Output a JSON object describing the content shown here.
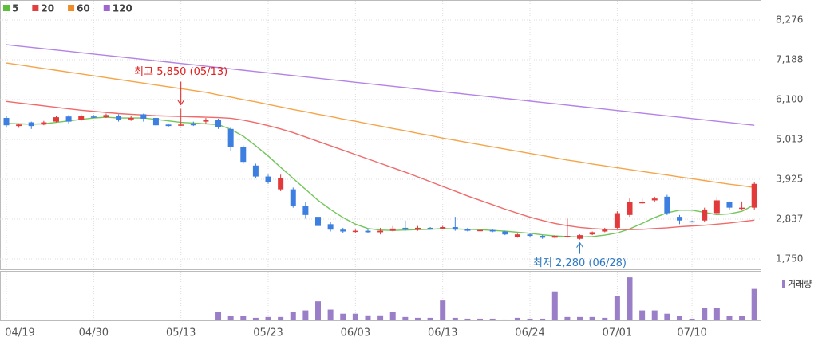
{
  "chart_data": [
    {
      "type": "candlestick",
      "up_color": "#e23a3a",
      "down_color": "#3d7fe0",
      "open": [
        5600,
        5380,
        5480,
        5420,
        5500,
        5640,
        5550,
        5640,
        5620,
        5650,
        5560,
        5700,
        5600,
        5420,
        5400,
        5450,
        5500,
        5550,
        5300,
        4800,
        4300,
        4000,
        3650,
        3650,
        3200,
        2900,
        2700,
        2550,
        2500,
        2520,
        2480,
        2520,
        2600,
        2550,
        2600,
        2580,
        2620,
        2560,
        2520,
        2540,
        2500,
        2350,
        2420,
        2380,
        2330,
        2380,
        2300,
        2420,
        2500,
        2600,
        2950,
        3300,
        3350,
        3450,
        2900,
        2780,
        2800,
        3000,
        3300,
        3150,
        3150
      ],
      "high": [
        5650,
        5450,
        5500,
        5520,
        5650,
        5680,
        5700,
        5680,
        5720,
        5700,
        5650,
        5720,
        5620,
        5450,
        5850,
        5500,
        5600,
        5580,
        5350,
        4850,
        4350,
        4050,
        4050,
        3700,
        3300,
        3000,
        2750,
        2600,
        2550,
        2560,
        2600,
        2650,
        2800,
        2650,
        2620,
        2650,
        2900,
        2600,
        2560,
        2560,
        2520,
        2440,
        2440,
        2400,
        2400,
        2850,
        2420,
        2500,
        2600,
        3050,
        3400,
        3400,
        3450,
        3500,
        2950,
        2800,
        3150,
        3450,
        3320,
        3320,
        3850
      ],
      "low": [
        5350,
        5330,
        5300,
        5400,
        5480,
        5450,
        5520,
        5600,
        5600,
        5500,
        5520,
        5500,
        5350,
        5350,
        5380,
        5380,
        5450,
        5300,
        4700,
        4350,
        3950,
        3800,
        3600,
        3150,
        2850,
        2550,
        2500,
        2450,
        2470,
        2450,
        2420,
        2500,
        2520,
        2520,
        2550,
        2560,
        2520,
        2500,
        2500,
        2480,
        2400,
        2330,
        2350,
        2300,
        2310,
        2330,
        2280,
        2400,
        2480,
        2580,
        2900,
        3250,
        3300,
        2950,
        2700,
        2750,
        2750,
        2950,
        3100,
        3100,
        3100
      ],
      "close": [
        5400,
        5420,
        5380,
        5480,
        5620,
        5500,
        5650,
        5620,
        5680,
        5550,
        5600,
        5580,
        5400,
        5380,
        5420,
        5400,
        5550,
        5350,
        4800,
        4400,
        4000,
        3850,
        3950,
        3200,
        2950,
        2650,
        2550,
        2500,
        2520,
        2480,
        2520,
        2580,
        2550,
        2600,
        2580,
        2620,
        2550,
        2520,
        2540,
        2500,
        2420,
        2420,
        2380,
        2330,
        2380,
        2380,
        2400,
        2480,
        2550,
        3000,
        3300,
        3300,
        3400,
        3000,
        2800,
        2760,
        3100,
        3350,
        3150,
        3150,
        3800
      ],
      "series": [
        {
          "name": "5",
          "color": "#5cbf3c",
          "line_color": "#72c65a",
          "values": [
            5450,
            5440,
            5430,
            5440,
            5480,
            5520,
            5560,
            5600,
            5620,
            5600,
            5600,
            5600,
            5560,
            5520,
            5480,
            5460,
            5440,
            5420,
            5290,
            5100,
            4840,
            4560,
            4250,
            3950,
            3650,
            3350,
            3100,
            2880,
            2700,
            2580,
            2540,
            2530,
            2540,
            2550,
            2560,
            2580,
            2570,
            2560,
            2550,
            2530,
            2510,
            2480,
            2450,
            2410,
            2380,
            2360,
            2350,
            2360,
            2400,
            2460,
            2570,
            2720,
            2880,
            3010,
            3080,
            3080,
            3020,
            2960,
            2980,
            3050,
            3230
          ]
        },
        {
          "name": "20",
          "color": "#e04040",
          "line_color": "#f06a6a",
          "values": [
            6050,
            6010,
            5970,
            5930,
            5890,
            5850,
            5810,
            5780,
            5750,
            5720,
            5700,
            5680,
            5660,
            5650,
            5640,
            5630,
            5620,
            5610,
            5590,
            5540,
            5470,
            5390,
            5300,
            5200,
            5080,
            4960,
            4840,
            4720,
            4600,
            4480,
            4360,
            4240,
            4120,
            3990,
            3860,
            3730,
            3600,
            3470,
            3350,
            3230,
            3110,
            3000,
            2890,
            2800,
            2720,
            2660,
            2610,
            2580,
            2560,
            2550,
            2550,
            2560,
            2580,
            2600,
            2630,
            2650,
            2670,
            2700,
            2730,
            2770,
            2810
          ]
        },
        {
          "name": "60",
          "color": "#f08c28",
          "line_color": "#f5a548",
          "values": [
            7100,
            7050,
            7000,
            6950,
            6900,
            6850,
            6800,
            6750,
            6700,
            6650,
            6600,
            6550,
            6500,
            6450,
            6400,
            6350,
            6300,
            6230,
            6170,
            6100,
            6040,
            5970,
            5900,
            5830,
            5770,
            5700,
            5640,
            5570,
            5510,
            5440,
            5380,
            5310,
            5250,
            5180,
            5120,
            5050,
            4990,
            4930,
            4870,
            4810,
            4750,
            4690,
            4630,
            4570,
            4510,
            4450,
            4400,
            4340,
            4290,
            4240,
            4190,
            4140,
            4090,
            4040,
            3990,
            3940,
            3890,
            3840,
            3790,
            3750,
            3700
          ]
        },
        {
          "name": "120",
          "color": "#a066d0",
          "line_color": "#b383e6",
          "values": [
            7600,
            7563,
            7527,
            7490,
            7453,
            7417,
            7380,
            7343,
            7307,
            7270,
            7233,
            7197,
            7160,
            7123,
            7087,
            7050,
            7013,
            6977,
            6940,
            6903,
            6867,
            6830,
            6793,
            6757,
            6720,
            6683,
            6647,
            6610,
            6573,
            6537,
            6500,
            6463,
            6427,
            6390,
            6353,
            6317,
            6280,
            6243,
            6207,
            6170,
            6133,
            6097,
            6060,
            6023,
            5987,
            5950,
            5913,
            5877,
            5840,
            5803,
            5767,
            5730,
            5693,
            5657,
            5620,
            5583,
            5547,
            5510,
            5473,
            5437,
            5400
          ]
        }
      ],
      "ylim": [
        1750,
        8276
      ],
      "yticks": [
        {
          "value": 1750,
          "label": "1,750"
        },
        {
          "value": 2837,
          "label": "2,837"
        },
        {
          "value": 3925,
          "label": "3,925"
        },
        {
          "value": 5013,
          "label": "5,013"
        },
        {
          "value": 6100,
          "label": "6,100"
        },
        {
          "value": 7188,
          "label": "7,188"
        },
        {
          "value": 8276,
          "label": "8,276"
        }
      ],
      "grid": true,
      "high_label": "최고 5,850 (05/13)",
      "low_label": "최저 2,280 (06/28)",
      "high_color": "#e02020",
      "low_color": "#2f7ac0"
    },
    {
      "type": "bar",
      "name": "거래량",
      "color": "#9a7fc8",
      "categories": [
        "04/19",
        null,
        null,
        null,
        null,
        null,
        null,
        "04/30",
        null,
        null,
        null,
        null,
        null,
        null,
        "05/13",
        null,
        null,
        null,
        null,
        null,
        null,
        "05/23",
        null,
        null,
        null,
        null,
        null,
        null,
        "06/03",
        null,
        null,
        null,
        null,
        null,
        null,
        "06/13",
        null,
        null,
        null,
        null,
        null,
        null,
        "06/24",
        null,
        null,
        null,
        null,
        null,
        null,
        "07/01",
        null,
        null,
        null,
        null,
        null,
        "07/10",
        null,
        null,
        null,
        null,
        null
      ],
      "values": [
        0,
        0,
        0,
        0,
        0,
        0,
        0,
        0,
        0,
        0,
        0,
        0,
        0,
        0,
        0,
        0,
        0,
        10,
        5,
        5,
        3,
        4,
        4,
        10,
        12,
        23,
        13,
        8,
        8,
        6,
        6,
        10,
        4,
        3,
        3,
        24,
        3,
        2,
        2,
        2,
        1,
        3,
        2,
        2,
        35,
        4,
        4,
        4,
        3,
        29,
        52,
        12,
        12,
        8,
        5,
        2,
        15,
        15,
        5,
        5,
        38
      ],
      "ylim": [
        0,
        55
      ]
    }
  ]
}
